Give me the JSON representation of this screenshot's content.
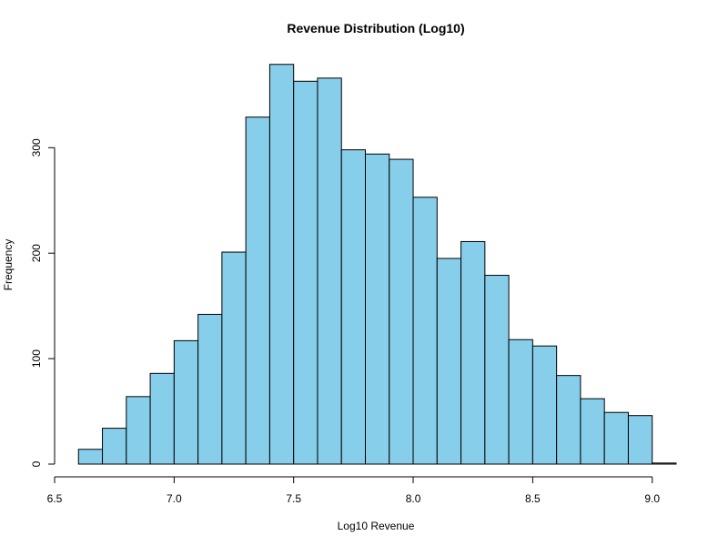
{
  "chart_data": {
    "type": "bar",
    "title": "Revenue Distribution (Log10)",
    "xlabel": "Log10 Revenue",
    "ylabel": "Frequency",
    "bin_width": 0.1,
    "bins": [
      {
        "start": 6.6,
        "end": 6.7,
        "count": 14
      },
      {
        "start": 6.7,
        "end": 6.8,
        "count": 34
      },
      {
        "start": 6.8,
        "end": 6.9,
        "count": 64
      },
      {
        "start": 6.9,
        "end": 7.0,
        "count": 86
      },
      {
        "start": 7.0,
        "end": 7.1,
        "count": 117
      },
      {
        "start": 7.1,
        "end": 7.2,
        "count": 142
      },
      {
        "start": 7.2,
        "end": 7.3,
        "count": 201
      },
      {
        "start": 7.3,
        "end": 7.4,
        "count": 329
      },
      {
        "start": 7.4,
        "end": 7.5,
        "count": 379
      },
      {
        "start": 7.5,
        "end": 7.6,
        "count": 363
      },
      {
        "start": 7.6,
        "end": 7.7,
        "count": 366
      },
      {
        "start": 7.7,
        "end": 7.8,
        "count": 298
      },
      {
        "start": 7.8,
        "end": 7.9,
        "count": 294
      },
      {
        "start": 7.9,
        "end": 8.0,
        "count": 289
      },
      {
        "start": 8.0,
        "end": 8.1,
        "count": 253
      },
      {
        "start": 8.1,
        "end": 8.2,
        "count": 195
      },
      {
        "start": 8.2,
        "end": 8.3,
        "count": 211
      },
      {
        "start": 8.3,
        "end": 8.4,
        "count": 179
      },
      {
        "start": 8.4,
        "end": 8.5,
        "count": 118
      },
      {
        "start": 8.5,
        "end": 8.6,
        "count": 112
      },
      {
        "start": 8.6,
        "end": 8.7,
        "count": 84
      },
      {
        "start": 8.7,
        "end": 8.8,
        "count": 62
      },
      {
        "start": 8.8,
        "end": 8.9,
        "count": 49
      },
      {
        "start": 8.9,
        "end": 9.0,
        "count": 46
      },
      {
        "start": 9.0,
        "end": 9.1,
        "count": 1
      }
    ],
    "xlim": [
      6.5,
      9.1
    ],
    "ylim": [
      0,
      390
    ],
    "x_ticks": [
      6.5,
      7.0,
      7.5,
      8.0,
      8.5,
      9.0
    ],
    "x_tick_labels": [
      "6.5",
      "7.0",
      "7.5",
      "8.0",
      "8.5",
      "9.0"
    ],
    "y_ticks": [
      0,
      100,
      200,
      300
    ],
    "y_tick_labels": [
      "0",
      "100",
      "200",
      "300"
    ],
    "grid": false,
    "legend": "none",
    "colors": {
      "bar_fill": "#87CEEB",
      "bar_stroke": "#000000"
    }
  }
}
